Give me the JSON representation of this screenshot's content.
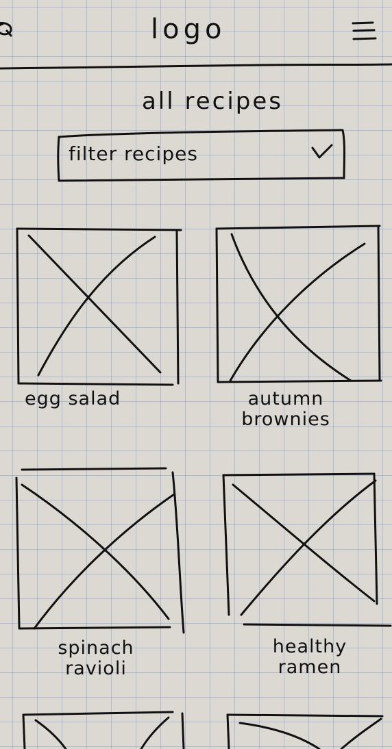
{
  "header": {
    "logo": "logo",
    "search_icon": "search-icon",
    "menu_icon": "hamburger-menu-icon"
  },
  "page": {
    "title": "all recipes"
  },
  "filter": {
    "label": "filter recipes",
    "icon": "chevron-down-icon"
  },
  "recipes": [
    {
      "title": "egg salad"
    },
    {
      "title": "autumn brownies"
    },
    {
      "title": "spinach ravioli"
    },
    {
      "title": "healthy ramen"
    }
  ],
  "colors": {
    "paper": "#dcd9d3",
    "ink": "#111111",
    "grid": "#7f8faa"
  }
}
